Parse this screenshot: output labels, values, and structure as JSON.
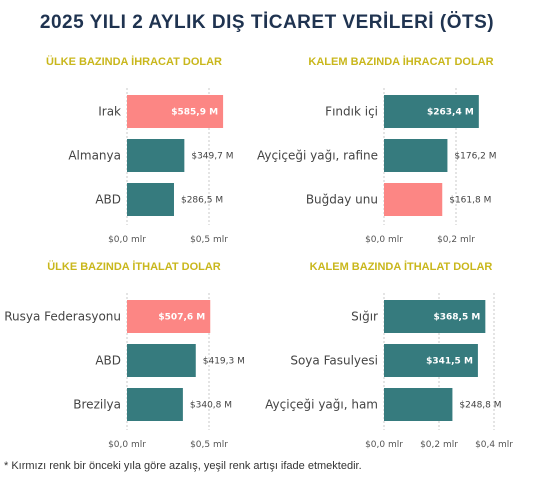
{
  "title": "2025 YILI 2 AYLIK DIŞ TİCARET VERİLERİ (ÖTS)",
  "footnote": "* Kırmızı renk bir önceki yıla göre azalış, yeşil renk artışı ifade etmektedir.",
  "colors": {
    "increase": "#367b7e",
    "decrease": "#fc8684",
    "panel_title": "#c9b71c",
    "main_title": "#1f3350"
  },
  "chart_data": [
    {
      "type": "bar",
      "orientation": "horizontal",
      "title": "ÜLKE BAZINDA İHRACAT DOLAR",
      "categories": [
        "Irak",
        "Almanya",
        "ABD"
      ],
      "values": [
        585.9,
        349.7,
        286.5
      ],
      "labels": [
        "$585,9 M",
        "$349,7 M",
        "$286,5 M"
      ],
      "bar_colors": [
        "#fc8684",
        "#367b7e",
        "#367b7e"
      ],
      "ticks": [
        0,
        500
      ],
      "tick_labels": [
        "$0,0 mlr",
        "$0,5 mlr"
      ],
      "xlim": [
        0,
        800
      ],
      "grid": true
    },
    {
      "type": "bar",
      "orientation": "horizontal",
      "title": "KALEM BAZINDA İHRACAT DOLAR",
      "categories": [
        "Fındık içi",
        "Ayçiçeği yağı, rafine",
        "Buğday unu"
      ],
      "values": [
        263.4,
        176.2,
        161.8
      ],
      "labels": [
        "$263,4 M",
        "$176,2 M",
        "$161,8 M"
      ],
      "bar_colors": [
        "#367b7e",
        "#367b7e",
        "#fc8684"
      ],
      "ticks": [
        0,
        200
      ],
      "tick_labels": [
        "$0,0 mlr",
        "$0,2 mlr"
      ],
      "xlim": [
        0,
        400
      ],
      "grid": true
    },
    {
      "type": "bar",
      "orientation": "horizontal",
      "title": "ÜLKE BAZINDA İTHALAT DOLAR",
      "categories": [
        "Rusya Federasyonu",
        "ABD",
        "Brezilya"
      ],
      "values": [
        507.6,
        419.3,
        340.8
      ],
      "labels": [
        "$507,6 M",
        "$419,3 M",
        "$340,8 M"
      ],
      "bar_colors": [
        "#fc8684",
        "#367b7e",
        "#367b7e"
      ],
      "ticks": [
        0,
        500
      ],
      "tick_labels": [
        "$0,0 mlr",
        "$0,5 mlr"
      ],
      "xlim": [
        0,
        800
      ],
      "grid": true
    },
    {
      "type": "bar",
      "orientation": "horizontal",
      "title": "KALEM BAZINDA İTHALAT DOLAR",
      "categories": [
        "Sığır",
        "Soya Fasulyesi",
        "Ayçiçeği yağı, ham"
      ],
      "values": [
        368.5,
        341.5,
        248.8
      ],
      "labels": [
        "$368,5 M",
        "$341,5 M",
        "$248,8 M"
      ],
      "bar_colors": [
        "#367b7e",
        "#367b7e",
        "#367b7e"
      ],
      "ticks": [
        0,
        200,
        400
      ],
      "tick_labels": [
        "$0,0 mlr",
        "$0,2 mlr",
        "$0,4 mlr"
      ],
      "xlim": [
        0,
        450
      ],
      "grid": true
    }
  ]
}
